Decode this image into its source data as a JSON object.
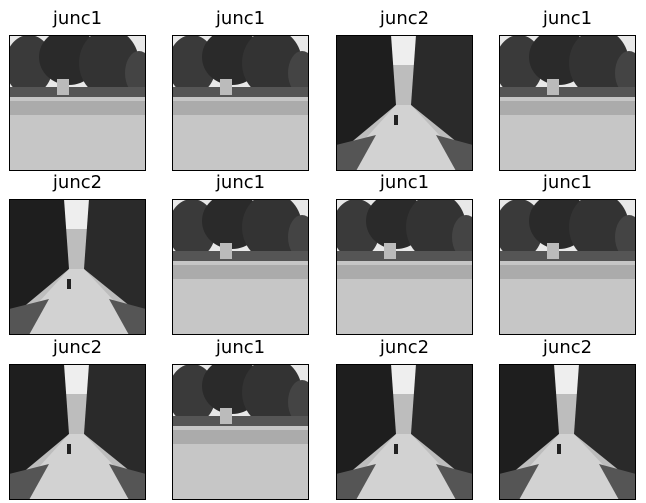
{
  "images": [
    {
      "title": "junc1"
    },
    {
      "title": "junc1"
    },
    {
      "title": "junc2"
    },
    {
      "title": "junc1"
    },
    {
      "title": "junc2"
    },
    {
      "title": "junc1"
    },
    {
      "title": "junc1"
    },
    {
      "title": "junc1"
    },
    {
      "title": "junc2"
    },
    {
      "title": "junc1"
    },
    {
      "title": "junc2"
    },
    {
      "title": "junc2"
    }
  ]
}
